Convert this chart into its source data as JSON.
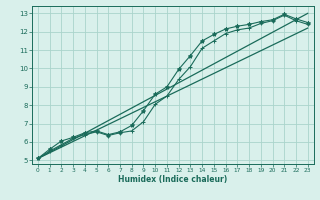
{
  "title": "",
  "xlabel": "Humidex (Indice chaleur)",
  "bg_color": "#d9f0eb",
  "grid_color": "#aad4cb",
  "line_color": "#1a6b5a",
  "xlim": [
    -0.5,
    23.5
  ],
  "ylim": [
    4.8,
    13.4
  ],
  "xticks": [
    0,
    1,
    2,
    3,
    4,
    5,
    6,
    7,
    8,
    9,
    10,
    11,
    12,
    13,
    14,
    15,
    16,
    17,
    18,
    19,
    20,
    21,
    22,
    23
  ],
  "yticks": [
    5,
    6,
    7,
    8,
    9,
    10,
    11,
    12,
    13
  ],
  "line1_x": [
    0,
    1,
    2,
    3,
    4,
    5,
    6,
    7,
    8,
    9,
    10,
    11,
    12,
    13,
    14,
    15,
    16,
    17,
    18,
    19,
    20,
    21,
    22,
    23
  ],
  "line1_y": [
    5.1,
    5.5,
    5.85,
    6.2,
    6.4,
    6.55,
    6.35,
    6.5,
    6.6,
    7.1,
    8.05,
    8.5,
    9.4,
    10.1,
    11.1,
    11.5,
    11.9,
    12.1,
    12.2,
    12.45,
    12.6,
    12.9,
    12.6,
    12.4
  ],
  "line2_x": [
    0,
    1,
    2,
    3,
    4,
    5,
    6,
    7,
    8,
    9,
    10,
    11,
    12,
    13,
    14,
    15,
    16,
    17,
    18,
    19,
    20,
    21,
    22,
    23
  ],
  "line2_y": [
    5.1,
    5.6,
    6.05,
    6.25,
    6.5,
    6.6,
    6.4,
    6.55,
    6.9,
    7.7,
    8.6,
    9.0,
    9.95,
    10.7,
    11.5,
    11.85,
    12.15,
    12.3,
    12.4,
    12.55,
    12.65,
    12.95,
    12.7,
    12.5
  ],
  "line3_x": [
    0,
    23
  ],
  "line3_y": [
    5.1,
    12.2
  ],
  "line4_x": [
    0,
    23
  ],
  "line4_y": [
    5.1,
    13.0
  ]
}
